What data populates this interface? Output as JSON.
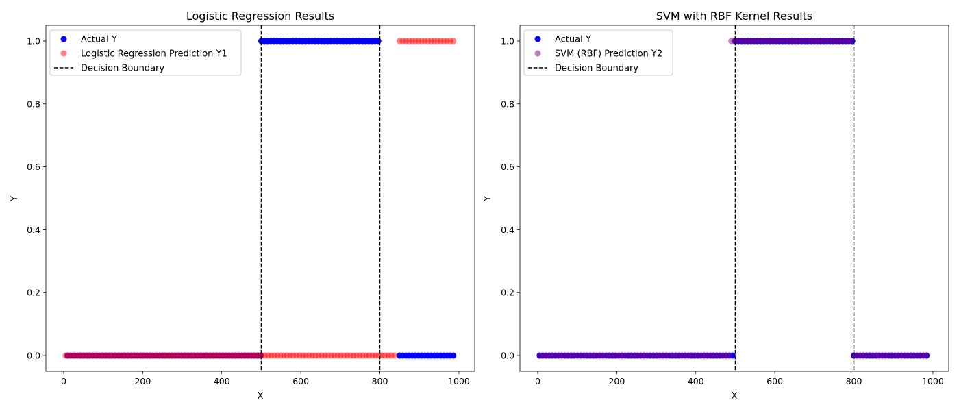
{
  "chart_data": [
    {
      "type": "scatter",
      "title": "Logistic Regression Results",
      "xlabel": "X",
      "ylabel": "Y",
      "xlim": [
        -45,
        1040
      ],
      "ylim": [
        -0.05,
        1.05
      ],
      "xticks": [
        0,
        200,
        400,
        600,
        800,
        1000
      ],
      "yticks": [
        0.0,
        0.2,
        0.4,
        0.6,
        0.8,
        1.0
      ],
      "xtick_labels": [
        "0",
        "200",
        "400",
        "600",
        "800",
        "1000"
      ],
      "ytick_labels": [
        "0.0",
        "0.2",
        "0.4",
        "0.6",
        "0.8",
        "1.0"
      ],
      "grid": false,
      "legend_placement": "upper-left",
      "decision_boundaries": [
        500,
        800
      ],
      "series": [
        {
          "name": "Actual Y",
          "color": "#0000ff",
          "alpha": 1.0,
          "kind": "points",
          "points": [
            {
              "x_range": [
                10,
                500
              ],
              "step": 8,
              "y": 0
            },
            {
              "x_range": [
                500,
                800
              ],
              "step": 8,
              "y": 1
            },
            {
              "x_range": [
                850,
                990
              ],
              "step": 8,
              "y": 0
            }
          ]
        },
        {
          "name": "Logistic Regression Prediction Y1",
          "color": "#ff0000",
          "alpha": 0.5,
          "kind": "points",
          "points": [
            {
              "x_range": [
                5,
                840
              ],
              "step": 8,
              "y": 0
            },
            {
              "x_range": [
                850,
                990
              ],
              "step": 8,
              "y": 1
            }
          ]
        },
        {
          "name": "Decision Boundary",
          "color": "#000000",
          "kind": "vline"
        }
      ]
    },
    {
      "type": "scatter",
      "title": "SVM with RBF Kernel Results",
      "xlabel": "X",
      "ylabel": "Y",
      "xlim": [
        -45,
        1040
      ],
      "ylim": [
        -0.05,
        1.05
      ],
      "xticks": [
        0,
        200,
        400,
        600,
        800,
        1000
      ],
      "yticks": [
        0.0,
        0.2,
        0.4,
        0.6,
        0.8,
        1.0
      ],
      "xtick_labels": [
        "0",
        "200",
        "400",
        "600",
        "800",
        "1000"
      ],
      "ytick_labels": [
        "0.0",
        "0.2",
        "0.4",
        "0.6",
        "0.8",
        "1.0"
      ],
      "grid": false,
      "legend_placement": "upper-left",
      "decision_boundaries": [
        500,
        800
      ],
      "series": [
        {
          "name": "Actual Y",
          "color": "#0000ff",
          "alpha": 1.0,
          "kind": "points",
          "points": [
            {
              "x_range": [
                5,
                500
              ],
              "step": 8,
              "y": 0
            },
            {
              "x_range": [
                500,
                800
              ],
              "step": 8,
              "y": 1
            },
            {
              "x_range": [
                800,
                990
              ],
              "step": 8,
              "y": 0
            }
          ]
        },
        {
          "name": "SVM (RBF) Prediction Y2",
          "color": "#800080",
          "alpha": 0.5,
          "kind": "points",
          "points": [
            {
              "x_range": [
                5,
                490
              ],
              "step": 8,
              "y": 0
            },
            {
              "x_range": [
                490,
                800
              ],
              "step": 8,
              "y": 1
            },
            {
              "x_range": [
                800,
                990
              ],
              "step": 8,
              "y": 0
            }
          ]
        },
        {
          "name": "Decision Boundary",
          "color": "#000000",
          "kind": "vline"
        }
      ]
    }
  ]
}
